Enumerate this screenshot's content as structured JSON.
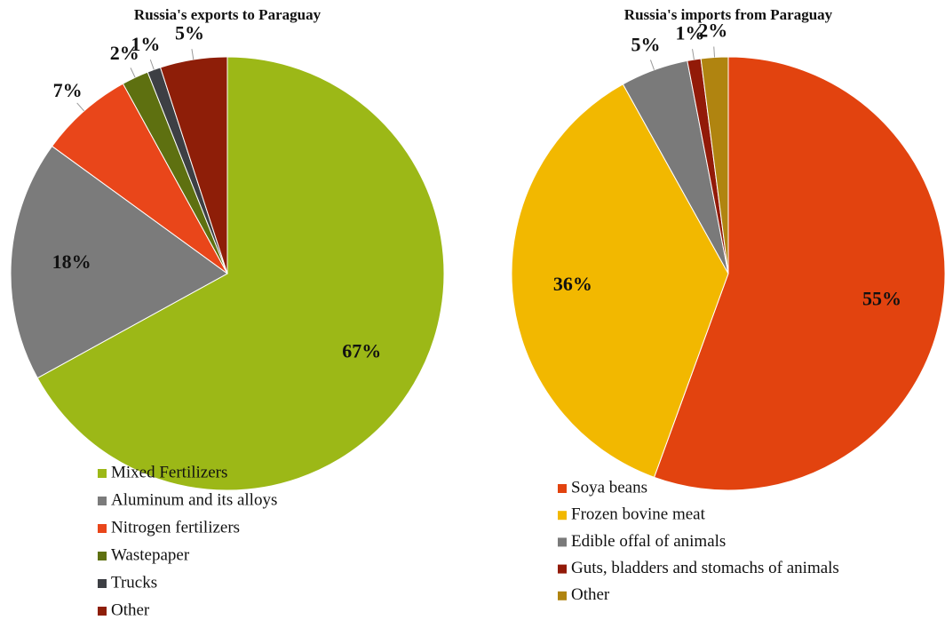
{
  "chart_data": [
    {
      "type": "pie",
      "title": "Russia's exports  to Paraguay",
      "categories": [
        "Mixed Fertilizers",
        "Aluminum and its alloys",
        "Nitrogen fertilizers",
        "Wastepaper",
        "Trucks",
        "Other"
      ],
      "values": [
        67,
        18,
        7,
        2,
        1,
        5
      ],
      "value_labels": [
        "67%",
        "18%",
        "7%",
        "2%",
        "1%",
        "5%"
      ],
      "colors": [
        "#9cb817",
        "#7b7b7b",
        "#e9461a",
        "#5e7010",
        "#3d3f44",
        "#8e1e08"
      ]
    },
    {
      "type": "pie",
      "title": "Russia's imports from Paraguay",
      "categories": [
        "Soya beans",
        "Frozen bovine meat",
        "Edible offal of animals",
        "Guts, bladders and stomachs of animals",
        "Other"
      ],
      "values": [
        55,
        36,
        5,
        1,
        2
      ],
      "value_labels": [
        "55%",
        "36%",
        "5%",
        "1%",
        "2%"
      ],
      "colors": [
        "#e2430f",
        "#f2b800",
        "#7a7a7a",
        "#921a08",
        "#b08410"
      ]
    }
  ]
}
